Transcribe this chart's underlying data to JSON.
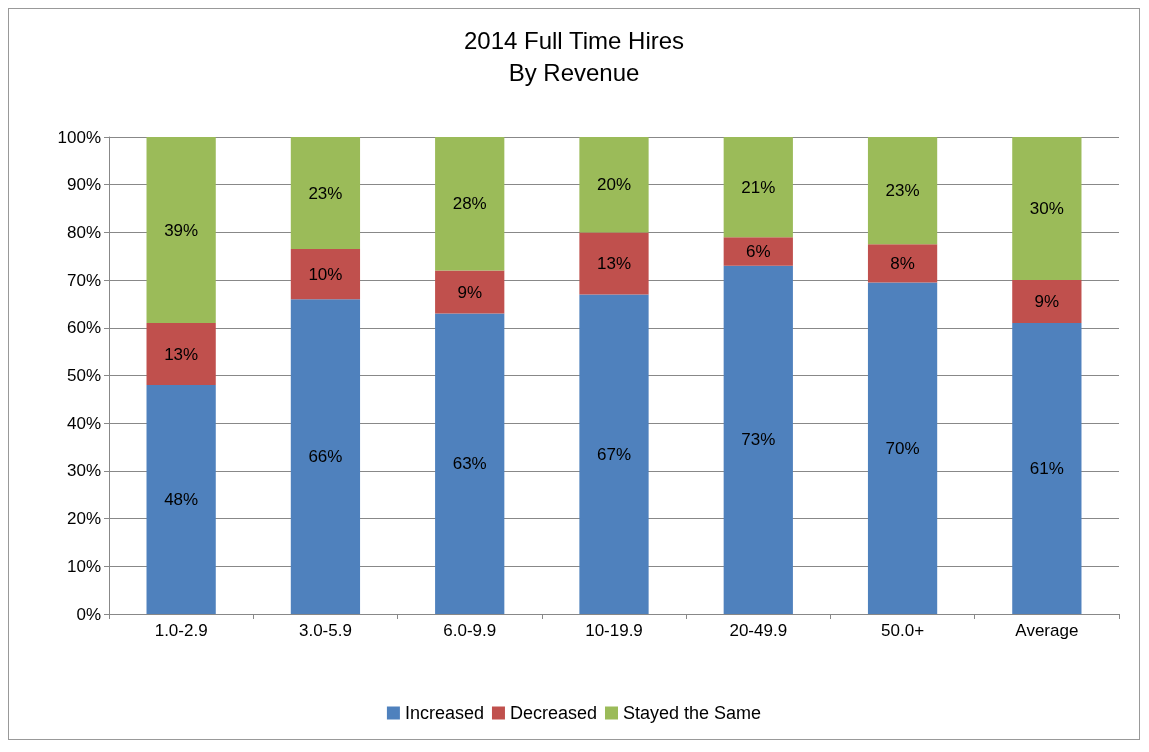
{
  "chart_data": {
    "type": "bar",
    "title": "2014 Full Time Hires",
    "subtitle": "By Revenue",
    "categories": [
      "1.0-2.9",
      "3.0-5.9",
      "6.0-9.9",
      "10-19.9",
      "20-49.9",
      "50.0+",
      "Average"
    ],
    "series": [
      {
        "name": "Increased",
        "color": "#4f81bd",
        "values": [
          48,
          66,
          63,
          67,
          73,
          69.5,
          61
        ],
        "value_labels": [
          "48%",
          "66%",
          "63%",
          "67%",
          "73%",
          "70%",
          "61%"
        ]
      },
      {
        "name": "Decreased",
        "color": "#c0504d",
        "values": [
          13,
          10.5,
          9,
          13,
          6,
          8,
          9
        ],
        "value_labels": [
          "13%",
          "10%",
          "9%",
          "13%",
          "6%",
          "8%",
          "9%"
        ]
      },
      {
        "name": "Stayed the Same",
        "color": "#9bbb59",
        "values": [
          39,
          23.5,
          28,
          20,
          21,
          22.5,
          30
        ],
        "value_labels": [
          "39%",
          "23%",
          "28%",
          "20%",
          "21%",
          "23%",
          "30%"
        ]
      }
    ],
    "stacked": true,
    "ylim": [
      0,
      100
    ],
    "yticks": [
      {
        "value": 0,
        "label": "0%"
      },
      {
        "value": 10,
        "label": "10%"
      },
      {
        "value": 20,
        "label": "20%"
      },
      {
        "value": 30,
        "label": "30%"
      },
      {
        "value": 40,
        "label": "40%"
      },
      {
        "value": 50,
        "label": "50%"
      },
      {
        "value": 60,
        "label": "60%"
      },
      {
        "value": 70,
        "label": "70%"
      },
      {
        "value": 80,
        "label": "80%"
      },
      {
        "value": 90,
        "label": "90%"
      },
      {
        "value": 100,
        "label": "100%"
      }
    ],
    "grid": "y",
    "legend": "bottom"
  }
}
